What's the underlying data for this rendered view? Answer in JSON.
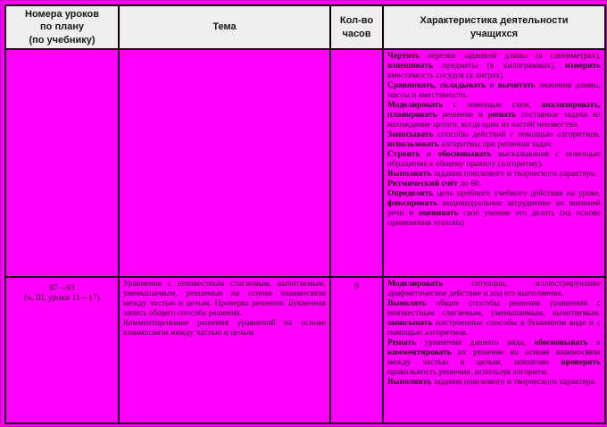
{
  "colors": {
    "page_background": "#ff00fa",
    "header_background": "#f0eded",
    "border": "#0d000d",
    "body_text": "#230016"
  },
  "table": {
    "headers": {
      "lessons": "Номера уроков\nпо плану\n(по учебнику)",
      "theme": "Тема",
      "hours": "Кол-во\nчасов",
      "activities": "Характеристика деятельности\nучащихся"
    },
    "rows": [
      {
        "lessons": [],
        "theme": [],
        "hours": "",
        "activities": [
          [
            {
              "b": true,
              "t": "Чертить"
            },
            {
              "t": " отрезки заданной длины (в сантиметрах), "
            },
            {
              "b": true,
              "t": "взвешивать"
            },
            {
              "t": " предметы (в килограммах), "
            },
            {
              "b": true,
              "t": "измерять"
            },
            {
              "t": " вместимость сосудов (в литрах)."
            }
          ],
          [
            {
              "b": true,
              "t": "Сравнивать, складывать"
            },
            {
              "t": " и "
            },
            {
              "b": true,
              "t": "вычитать"
            },
            {
              "t": " значения длины, массы и вместимости."
            }
          ],
          [
            {
              "b": true,
              "t": "Моделировать"
            },
            {
              "t": " с помощью схем, "
            },
            {
              "b": true,
              "t": "анализировать, планировать"
            },
            {
              "t": " решение и "
            },
            {
              "b": true,
              "t": "решать"
            },
            {
              "t": " составные задачи на нахождение целого, когда одна из частей неизвестна."
            }
          ],
          [
            {
              "b": true,
              "t": "Записывать"
            },
            {
              "t": " способы действий с помощью алгоритмов, "
            },
            {
              "b": true,
              "t": "использовать"
            },
            {
              "t": " алгоритмы при решении задач."
            }
          ],
          [
            {
              "b": true,
              "t": "Строить"
            },
            {
              "t": " и "
            },
            {
              "b": true,
              "t": "обосновывать"
            },
            {
              "t": " высказывания с помощью обращения к общему правилу (алгоритму)."
            }
          ],
          [
            {
              "b": true,
              "t": "Выполнять"
            },
            {
              "t": " задания поискового и творческого характера."
            }
          ],
          [
            {
              "b": true,
              "t": "Ритмический счёт"
            },
            {
              "t": " до 60."
            }
          ],
          [
            {
              "b": true,
              "t": "Определять"
            },
            {
              "t": " цель пробного учебного действия на уроке, "
            },
            {
              "b": true,
              "t": "фиксировать"
            },
            {
              "t": " индивидуальное затруднение во внешней речи и "
            },
            {
              "b": true,
              "t": "оценивать"
            },
            {
              "t": " своё умение это делать (на основе применения эталона)"
            }
          ]
        ]
      },
      {
        "lessons": [
          [
            {
              "t": "87—93"
            }
          ],
          [
            {
              "t": "(ч. III, уроки 11—17)"
            }
          ]
        ],
        "theme": [
          [
            {
              "t": "Уравнения с неизвестным слагаемым, вычитаемым, уменьшаемым, решаемые на основе взаимосвязи между частью и целым. Проверка решения. Буквенная запись общего способа решения."
            }
          ],
          [
            {
              "t": "Комментирование решения уравнений на основе взаимосвязи между частью и целым"
            }
          ]
        ],
        "hours": "9",
        "activities": [
          [
            {
              "b": true,
              "t": "Моделировать"
            },
            {
              "t": " ситуации, иллюстрирующие арифметическое действие и ход его выполнения."
            }
          ],
          [
            {
              "b": true,
              "t": "Выявлять"
            },
            {
              "t": " общие способы решения уравнений с неизвестным слагаемым, уменьшаемым, вычитаемым, "
            },
            {
              "b": true,
              "t": "записывать"
            },
            {
              "t": " построенные способы в буквенном виде и с помощью алгоритмов."
            }
          ],
          [
            {
              "b": true,
              "t": "Решать"
            },
            {
              "t": " уравнения данного вида, "
            },
            {
              "b": true,
              "t": "обосновывать"
            },
            {
              "t": " и "
            },
            {
              "b": true,
              "t": "комментировать"
            },
            {
              "t": " их решение на основе взаимосвязи между частью и целым, пошагово "
            },
            {
              "b": true,
              "t": "проверять"
            },
            {
              "t": " правильность решения, используя алгоритм."
            }
          ],
          [
            {
              "b": true,
              "t": "Выполнять"
            },
            {
              "t": " задания поискового и творческого характера."
            }
          ]
        ]
      }
    ]
  }
}
